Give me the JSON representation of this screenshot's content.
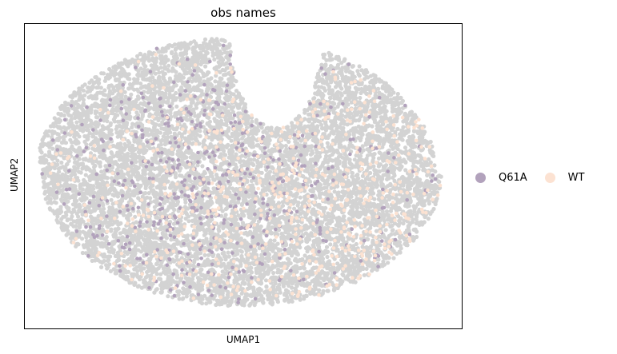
{
  "chart_data": {
    "type": "scatter",
    "title": "obs names",
    "xlabel": "UMAP1",
    "ylabel": "UMAP2",
    "grid": false,
    "ticks": false,
    "legend_position": "right",
    "background_color": "#d3d3d3",
    "series": [
      {
        "name": "Q61A",
        "color": "#b2a2bc"
      },
      {
        "name": "WT",
        "color": "#fce2d2"
      }
    ]
  }
}
